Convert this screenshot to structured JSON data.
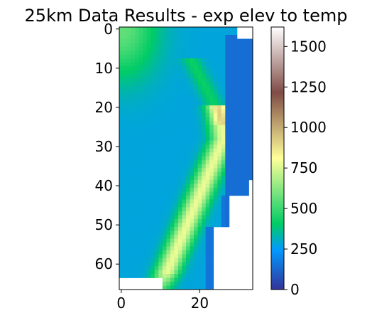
{
  "chart_data": {
    "type": "heatmap",
    "title": "25km Data Results - exp elev to temp",
    "xlabel": "",
    "ylabel": "",
    "grid": false,
    "colormap": "terrain",
    "x_ticks": [
      0,
      20
    ],
    "y_ticks": [
      0,
      10,
      20,
      30,
      40,
      50,
      60
    ],
    "xlim": [
      -0.5,
      33.5
    ],
    "ylim": [
      66.5,
      -0.5
    ],
    "grid_size": {
      "columns": 34,
      "rows": 67
    },
    "colorbar": {
      "min": 0,
      "max": 1620,
      "ticks": [
        0,
        250,
        500,
        750,
        1000,
        1250,
        1500
      ]
    },
    "field_description": {
      "base_value": 280,
      "ridge_peak": 780,
      "upper_left_high": 560,
      "no_data_value": null
    }
  }
}
